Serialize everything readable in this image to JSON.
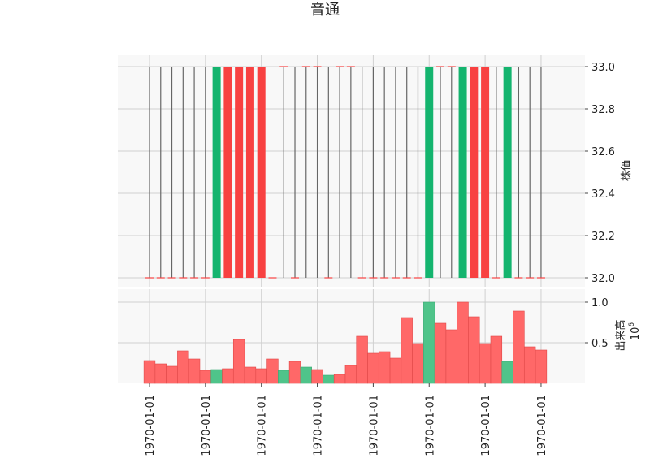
{
  "title": "音通",
  "chart_data": [
    {
      "type": "candlestick",
      "ylabel": "株価",
      "ylim": [
        32.0,
        33.0
      ],
      "yticks": [
        "32.0",
        "32.2",
        "32.4",
        "32.6",
        "32.8",
        "33.0"
      ],
      "grid": true,
      "candles": [
        {
          "open": 32.0,
          "close": 32.0,
          "high": 33.0,
          "low": 32.0
        },
        {
          "open": 32.0,
          "close": 32.0,
          "high": 33.0,
          "low": 32.0
        },
        {
          "open": 32.0,
          "close": 32.0,
          "high": 33.0,
          "low": 32.0
        },
        {
          "open": 32.0,
          "close": 32.0,
          "high": 33.0,
          "low": 32.0
        },
        {
          "open": 32.0,
          "close": 32.0,
          "high": 33.0,
          "low": 32.0
        },
        {
          "open": 32.0,
          "close": 32.0,
          "high": 33.0,
          "low": 32.0
        },
        {
          "open": 32.0,
          "close": 33.0,
          "high": 33.0,
          "low": 32.0
        },
        {
          "open": 33.0,
          "close": 32.0,
          "high": 33.0,
          "low": 32.0
        },
        {
          "open": 33.0,
          "close": 32.0,
          "high": 33.0,
          "low": 32.0
        },
        {
          "open": 33.0,
          "close": 32.0,
          "high": 33.0,
          "low": 32.0
        },
        {
          "open": 33.0,
          "close": 32.0,
          "high": 33.0,
          "low": 32.0
        },
        {
          "open": 32.0,
          "close": 32.0,
          "high": 32.0,
          "low": 32.0
        },
        {
          "open": 33.0,
          "close": 33.0,
          "high": 33.0,
          "low": 32.0
        },
        {
          "open": 32.0,
          "close": 32.0,
          "high": 33.0,
          "low": 32.0
        },
        {
          "open": 33.0,
          "close": 33.0,
          "high": 33.0,
          "low": 32.0
        },
        {
          "open": 33.0,
          "close": 33.0,
          "high": 33.0,
          "low": 32.0
        },
        {
          "open": 32.0,
          "close": 32.0,
          "high": 33.0,
          "low": 32.0
        },
        {
          "open": 33.0,
          "close": 33.0,
          "high": 33.0,
          "low": 32.0
        },
        {
          "open": 33.0,
          "close": 33.0,
          "high": 33.0,
          "low": 32.0
        },
        {
          "open": 32.0,
          "close": 32.0,
          "high": 33.0,
          "low": 32.0
        },
        {
          "open": 32.0,
          "close": 32.0,
          "high": 33.0,
          "low": 32.0
        },
        {
          "open": 32.0,
          "close": 32.0,
          "high": 33.0,
          "low": 32.0
        },
        {
          "open": 32.0,
          "close": 32.0,
          "high": 33.0,
          "low": 32.0
        },
        {
          "open": 32.0,
          "close": 32.0,
          "high": 33.0,
          "low": 32.0
        },
        {
          "open": 32.0,
          "close": 32.0,
          "high": 33.0,
          "low": 32.0
        },
        {
          "open": 32.0,
          "close": 33.0,
          "high": 33.0,
          "low": 32.0
        },
        {
          "open": 33.0,
          "close": 33.0,
          "high": 33.0,
          "low": 32.0
        },
        {
          "open": 33.0,
          "close": 33.0,
          "high": 33.0,
          "low": 32.0
        },
        {
          "open": 32.0,
          "close": 33.0,
          "high": 33.0,
          "low": 32.0
        },
        {
          "open": 33.0,
          "close": 32.0,
          "high": 33.0,
          "low": 32.0
        },
        {
          "open": 33.0,
          "close": 32.0,
          "high": 33.0,
          "low": 32.0
        },
        {
          "open": 32.0,
          "close": 32.0,
          "high": 33.0,
          "low": 32.0
        },
        {
          "open": 32.0,
          "close": 33.0,
          "high": 33.0,
          "low": 32.0
        },
        {
          "open": 32.0,
          "close": 32.0,
          "high": 33.0,
          "low": 32.0
        },
        {
          "open": 32.0,
          "close": 32.0,
          "high": 33.0,
          "low": 32.0
        },
        {
          "open": 32.0,
          "close": 32.0,
          "high": 33.0,
          "low": 32.0
        }
      ]
    },
    {
      "type": "bar",
      "ylabel": "出来高",
      "yscale_label": "10",
      "yscale_exp": "6",
      "ylim": [
        0,
        1.1
      ],
      "yticks": [
        "0.5",
        "1.0"
      ],
      "grid": true,
      "values": [
        0.28,
        0.24,
        0.21,
        0.4,
        0.3,
        0.16,
        0.17,
        0.18,
        0.54,
        0.2,
        0.18,
        0.3,
        0.16,
        0.27,
        0.2,
        0.17,
        0.1,
        0.11,
        0.22,
        0.58,
        0.37,
        0.39,
        0.31,
        0.81,
        0.49,
        1.0,
        0.74,
        0.66,
        1.0,
        0.82,
        0.49,
        0.58,
        0.27,
        0.89,
        0.45,
        0.41
      ],
      "colors": [
        "up",
        "up",
        "up",
        "up",
        "up",
        "up",
        "down",
        "up",
        "up",
        "up",
        "up",
        "up",
        "down",
        "up",
        "down",
        "up",
        "down",
        "up",
        "up",
        "up",
        "up",
        "up",
        "up",
        "up",
        "up",
        "down",
        "up",
        "up",
        "up",
        "up",
        "up",
        "up",
        "down",
        "up",
        "up",
        "up"
      ]
    }
  ],
  "x_tick_labels": [
    "1970-01-01",
    "1970-01-01",
    "1970-01-01",
    "1970-01-01",
    "1970-01-01",
    "1970-01-01",
    "1970-01-01",
    "1970-01-01"
  ],
  "colors": {
    "up": "#ff6868",
    "down": "#4fc48a",
    "candle_up": "#f84141",
    "candle_down": "#14b46e",
    "wick": "#666666",
    "grid": "#d0d0d0",
    "panel_bg": "#f8f8f8"
  }
}
